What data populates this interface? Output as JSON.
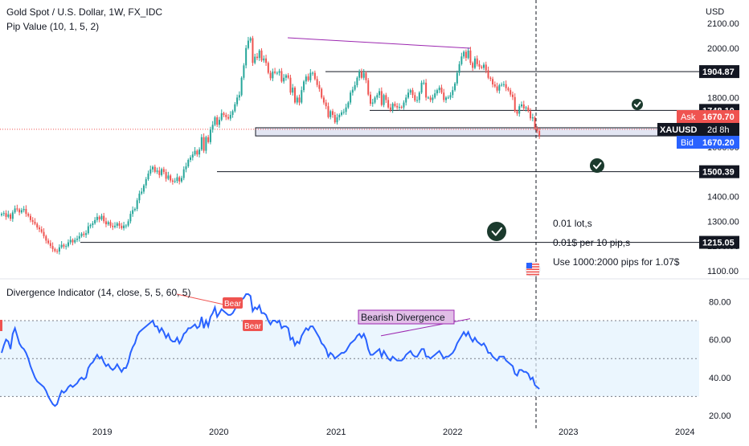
{
  "header": {
    "title": "Gold Spot / U.S. Dollar, 1W, FX_IDC",
    "indicator": "Pip Value (10, 1, 5, 2)"
  },
  "osc_header": {
    "title": "Divergence Indicator (14, close, 5, 5, 60, 5)"
  },
  "annotations": {
    "lot": "0.01 lot,s",
    "per_pip": "0.01$ per 10 pip,s",
    "use_pips": "Use 1000:2000 pips for 1.07$",
    "bearish_divergence": "Bearish Divergence",
    "bear_label": "Bear"
  },
  "price_scale": {
    "currency": "USD",
    "ticks": [
      "2100.00",
      "2000.00",
      "1900.00",
      "1800.00",
      "1700.00",
      "1600.00",
      "1500.00",
      "1400.00",
      "1300.00",
      "1200.00",
      "1100.00"
    ],
    "level_tags": [
      "1904.87",
      "1748.10",
      "1500.39",
      "1215.05"
    ],
    "ask_label": "Ask",
    "ask_value": "1670.70",
    "symbol": "XAUUSD",
    "countdown": "2d 8h",
    "bid_label": "Bid",
    "bid_value": "1670.20"
  },
  "osc_scale": {
    "ticks": [
      "80.00",
      "60.00",
      "40.00",
      "20.00"
    ]
  },
  "time_axis": {
    "ticks": [
      "2019",
      "2020",
      "2021",
      "2022",
      "2023",
      "2024"
    ]
  },
  "colors": {
    "up": "#26a69a",
    "down": "#ef5350",
    "ask": "#ef5350",
    "bid": "#2962ff",
    "osc_line": "#2962ff",
    "divergence": "#9c27b0",
    "check": "#1b3a2d"
  },
  "icons": [
    "check-circle-icon",
    "check-circle-icon",
    "check-circle-icon",
    "us-flag-icon"
  ],
  "chart_data": [
    {
      "type": "candlestick",
      "title": "Gold Spot / U.S. Dollar, 1W, FX_IDC",
      "ylim": [
        1100,
        2100
      ],
      "y_unit": "USD",
      "x_range": [
        "2018-01",
        "2022-09"
      ],
      "closes": [
        1330,
        1333,
        1318,
        1328,
        1310,
        1336,
        1352,
        1348,
        1336,
        1345,
        1350,
        1330,
        1322,
        1305,
        1298,
        1290,
        1275,
        1268,
        1257,
        1240,
        1222,
        1212,
        1200,
        1188,
        1180,
        1178,
        1195,
        1205,
        1198,
        1200,
        1215,
        1225,
        1215,
        1225,
        1230,
        1240,
        1250,
        1245,
        1252,
        1280,
        1285,
        1292,
        1305,
        1318,
        1308,
        1322,
        1300,
        1288,
        1297,
        1282,
        1277,
        1282,
        1292,
        1282,
        1272,
        1283,
        1283,
        1300,
        1330,
        1345,
        1350,
        1385,
        1412,
        1420,
        1445,
        1470,
        1493,
        1510,
        1520,
        1500,
        1505,
        1487,
        1511,
        1499,
        1472,
        1485,
        1465,
        1460,
        1463,
        1478,
        1461,
        1475,
        1510,
        1522,
        1548,
        1558,
        1570,
        1585,
        1570,
        1590,
        1640,
        1585,
        1640,
        1620,
        1670,
        1690,
        1720,
        1690,
        1710,
        1737,
        1730,
        1721,
        1715,
        1730,
        1745,
        1773,
        1800,
        1810,
        1880,
        1930,
        2000,
        2030,
        2040,
        1940,
        1965,
        1960,
        1990,
        1950,
        1958,
        1940,
        1900,
        1878,
        1905,
        1900,
        1900,
        1907,
        1865,
        1880,
        1890,
        1880,
        1820,
        1840,
        1780,
        1800,
        1780,
        1830,
        1865,
        1885,
        1870,
        1900,
        1900,
        1875,
        1851,
        1835,
        1800,
        1780,
        1765,
        1721,
        1745,
        1730,
        1700,
        1720,
        1730,
        1740,
        1742,
        1760,
        1780,
        1820,
        1832,
        1850,
        1880,
        1905,
        1880,
        1900,
        1870,
        1812,
        1775,
        1780,
        1800,
        1810,
        1826,
        1770,
        1810,
        1790,
        1760,
        1750,
        1775,
        1766,
        1760,
        1762,
        1760,
        1780,
        1800,
        1820,
        1830,
        1810,
        1788,
        1790,
        1820,
        1860,
        1860,
        1800,
        1800,
        1790,
        1800,
        1817,
        1830,
        1840,
        1820,
        1790,
        1800,
        1800,
        1810,
        1830,
        1857,
        1900,
        1935,
        1966,
        1985,
        1960,
        1990,
        1940,
        1920,
        1958,
        1935,
        1925,
        1920,
        1933,
        1910,
        1880,
        1875,
        1853,
        1845,
        1828,
        1850,
        1852,
        1854,
        1838,
        1830,
        1812,
        1802,
        1745,
        1735,
        1765,
        1772,
        1756,
        1760,
        1745,
        1716,
        1720,
        1675,
        1665,
        1645
      ]
    },
    {
      "type": "line",
      "title": "Divergence Indicator (14, close, 5, 5, 60, 5)",
      "ylim": [
        20,
        85
      ],
      "upper_band": 70,
      "mid_line": 50,
      "lower_band": 30,
      "series": [
        {
          "name": "Divergence Indicator (14, close, 5, 5, 60, 5)",
          "values": [
            53,
            57,
            60,
            59,
            55,
            63,
            66,
            62,
            58,
            56,
            55,
            53,
            50,
            46,
            43,
            40,
            38,
            37,
            36,
            35,
            33,
            30,
            28,
            26,
            25,
            26,
            30,
            33,
            32,
            33,
            35,
            36,
            35,
            36,
            37,
            39,
            40,
            39,
            40,
            45,
            47,
            48,
            50,
            52,
            50,
            51,
            48,
            46,
            47,
            45,
            44,
            45,
            47,
            45,
            43,
            45,
            45,
            48,
            53,
            56,
            58,
            62,
            64,
            65,
            66,
            67,
            68,
            69,
            70,
            67,
            67,
            64,
            66,
            64,
            61,
            63,
            60,
            59,
            59,
            61,
            58,
            60,
            63,
            64,
            66,
            66,
            67,
            68,
            66,
            67,
            72,
            66,
            70,
            67,
            72,
            74,
            77,
            72,
            74,
            76,
            75,
            74,
            73,
            73,
            74,
            76,
            78,
            78,
            81,
            82,
            84,
            84,
            83,
            75,
            77,
            76,
            78,
            74,
            74,
            73,
            70,
            68,
            70,
            70,
            69,
            70,
            66,
            67,
            67,
            66,
            60,
            61,
            57,
            59,
            58,
            62,
            64,
            66,
            65,
            67,
            67,
            65,
            63,
            61,
            58,
            57,
            55,
            51,
            53,
            52,
            50,
            51,
            52,
            53,
            53,
            54,
            56,
            58,
            59,
            60,
            62,
            63,
            61,
            63,
            60,
            55,
            52,
            52,
            53,
            54,
            55,
            51,
            54,
            52,
            50,
            49,
            51,
            50,
            49,
            49,
            49,
            50,
            52,
            53,
            54,
            52,
            51,
            51,
            53,
            55,
            55,
            51,
            51,
            50,
            51,
            52,
            53,
            54,
            52,
            50,
            51,
            51,
            52,
            53,
            55,
            58,
            60,
            62,
            64,
            62,
            64,
            61,
            59,
            61,
            59,
            58,
            57,
            58,
            56,
            53,
            53,
            51,
            50,
            49,
            51,
            51,
            51,
            49,
            48,
            47,
            46,
            42,
            41,
            44,
            44,
            43,
            43,
            42,
            39,
            40,
            36,
            35,
            34
          ]
        }
      ]
    }
  ],
  "levels": [
    {
      "price": 1904.87,
      "label": "1904.87"
    },
    {
      "price": 1748.1,
      "label": "1748.10"
    },
    {
      "price": 1500.39,
      "label": "1500.39"
    },
    {
      "price": 1215.05,
      "label": "1215.05"
    }
  ]
}
